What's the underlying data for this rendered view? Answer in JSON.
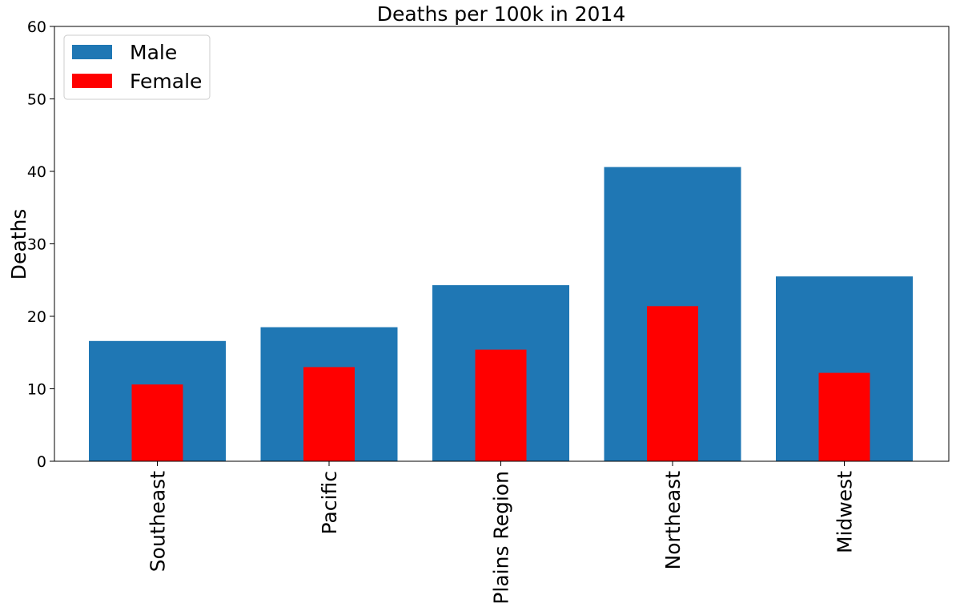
{
  "chart_data": {
    "type": "bar",
    "title": "Deaths per 100k in 2014",
    "xlabel": "",
    "ylabel": "Deaths",
    "categories": [
      "Southeast",
      "Pacific",
      "Plains Region",
      "Northeast",
      "Midwest"
    ],
    "series": [
      {
        "name": "Male",
        "color": "#1f77b4",
        "values": [
          16.6,
          18.5,
          24.3,
          40.6,
          25.5
        ]
      },
      {
        "name": "Female",
        "color": "#ff0000",
        "values": [
          10.6,
          13.0,
          15.4,
          21.4,
          12.2
        ]
      }
    ],
    "ylim": [
      0,
      60
    ],
    "yticks": [
      0,
      10,
      20,
      30,
      40,
      50,
      60
    ],
    "grid": false,
    "legend_position": "top-left"
  }
}
